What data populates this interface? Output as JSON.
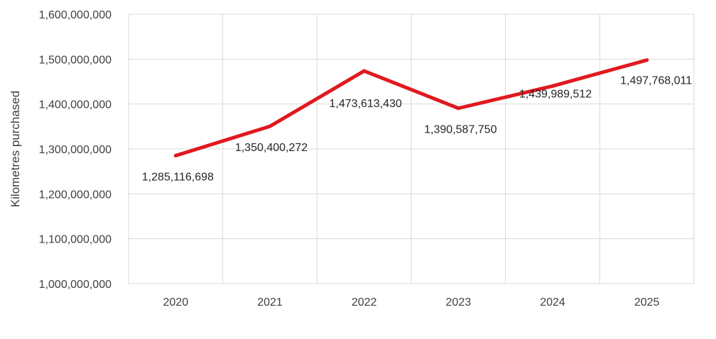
{
  "chart_data": {
    "type": "line",
    "title": "",
    "xlabel": "",
    "ylabel": "Kilometres purchased",
    "categories": [
      "2020",
      "2021",
      "2022",
      "2023",
      "2024",
      "2025"
    ],
    "series": [
      {
        "values": [
          1285116698,
          1350400272,
          1473613430,
          1390587750,
          1439989512,
          1497768011
        ],
        "data_labels": [
          "1,285,116,698",
          "1,350,400,272",
          "1,473,613,430",
          "1,390,587,750",
          "1,439,989,512",
          "1,497,768,011"
        ],
        "color": "#e0191f"
      }
    ],
    "ylim": [
      1000000000,
      1600000000
    ],
    "yticks": [
      1000000000,
      1100000000,
      1200000000,
      1300000000,
      1400000000,
      1500000000,
      1600000000
    ],
    "ytick_labels": [
      "1,000,000,000",
      "1,100,000,000",
      "1,200,000,000",
      "1,300,000,000",
      "1,400,000,000",
      "1,500,000,000",
      "1,600,000,000"
    ],
    "grid": true,
    "legend": "none"
  }
}
